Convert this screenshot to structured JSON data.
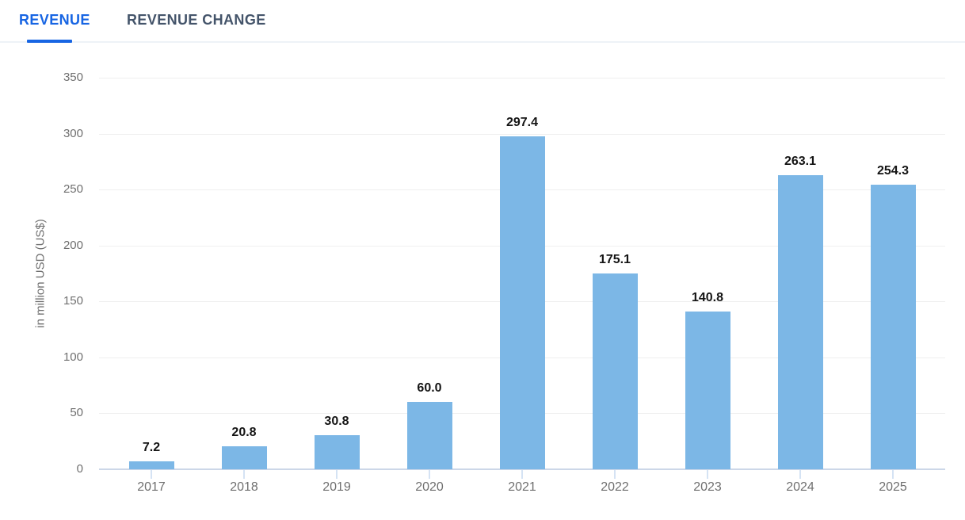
{
  "tabs": [
    {
      "label": "REVENUE",
      "active": true
    },
    {
      "label": "REVENUE CHANGE",
      "active": false
    }
  ],
  "colors": {
    "accent_blue": "#1765e3",
    "inactive_tab": "#44546a",
    "separator": "#eef2f7",
    "bar": "#7cb7e6",
    "gridline": "#efefef",
    "baseline": "#ccd7e8",
    "axis_tick": "#d5e3f4",
    "axis_text": "#6f6f6f",
    "value_label": "#141414"
  },
  "chart_data": {
    "type": "bar",
    "categories": [
      "2017",
      "2018",
      "2019",
      "2020",
      "2021",
      "2022",
      "2023",
      "2024",
      "2025"
    ],
    "values": [
      7.2,
      20.8,
      30.8,
      60.0,
      297.4,
      175.1,
      140.8,
      263.1,
      254.3
    ],
    "value_labels": [
      "7.2",
      "20.8",
      "30.8",
      "60.0",
      "297.4",
      "175.1",
      "140.8",
      "263.1",
      "254.3"
    ],
    "title": "",
    "xlabel": "",
    "ylabel": "in million USD (US$)",
    "ylim": [
      0,
      350
    ],
    "yticks": [
      0,
      50,
      100,
      150,
      200,
      250,
      300,
      350
    ],
    "grid": true,
    "legend": false
  }
}
